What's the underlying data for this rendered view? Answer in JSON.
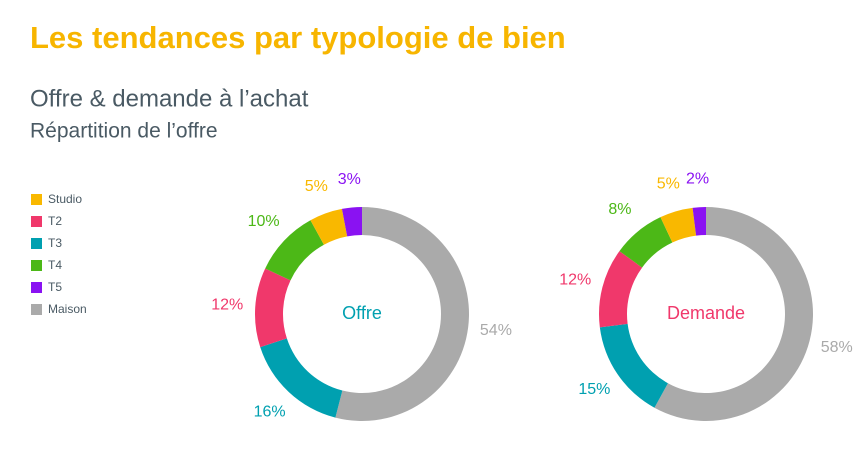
{
  "title": "Les tendances par typologie de bien",
  "subtitle": "Offre & demande à l’achat",
  "subtitle2": "Répartition de l’offre",
  "chart_data": [
    {
      "type": "pie",
      "center_label": "Offre",
      "center_label_color": "#00a0b0",
      "categories": [
        "Studio",
        "T2",
        "T3",
        "T4",
        "T5",
        "Maison"
      ],
      "values": [
        5,
        12,
        16,
        10,
        3,
        54
      ],
      "value_labels": [
        "5%",
        "12%",
        "16%",
        "10%",
        "3%",
        "54%"
      ],
      "colors": [
        "#f9b800",
        "#f0386b",
        "#00a0b0",
        "#4cb817",
        "#8a12f2",
        "#aaaaaa"
      ]
    },
    {
      "type": "pie",
      "center_label": "Demande",
      "center_label_color": "#f0386b",
      "categories": [
        "Studio",
        "T2",
        "T3",
        "T4",
        "T5",
        "Maison"
      ],
      "values": [
        5,
        12,
        15,
        8,
        2,
        58
      ],
      "value_labels": [
        "5%",
        "12%",
        "15%",
        "8%",
        "2%",
        "58%"
      ],
      "colors": [
        "#f9b800",
        "#f0386b",
        "#00a0b0",
        "#4cb817",
        "#8a12f2",
        "#aaaaaa"
      ]
    }
  ]
}
